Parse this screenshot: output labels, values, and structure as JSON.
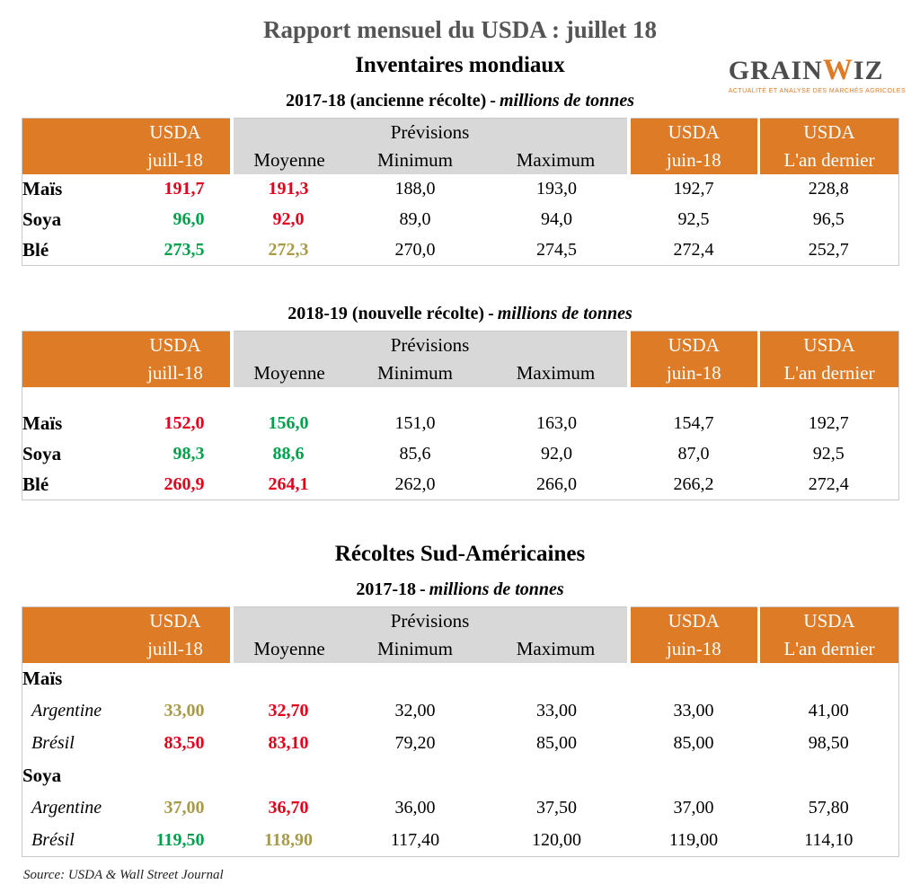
{
  "page": {
    "title": "Rapport mensuel du USDA : juillet 18",
    "source": "Source: USDA & Wall Street Journal"
  },
  "logo": {
    "grain": "GRAIN",
    "w": "W",
    "iz": "IZ",
    "tagline": "ACTUALITÉ ET ANALYSE DES MARCHÉS AGRICOLES"
  },
  "colors": {
    "orange": "#DE7B26",
    "gray_header": "#D8D8D8",
    "red": "#E4001B",
    "green": "#00A14B",
    "olive": "#A79B49",
    "black": "#000000",
    "title_gray": "#555555"
  },
  "sections": {
    "inventaires": {
      "heading": "Inventaires mondiaux"
    },
    "recoltes": {
      "heading": "Récoltes Sud-Américaines"
    }
  },
  "tables": {
    "ancienne": {
      "caption_bold": "2017-18 (ancienne récolte)",
      "caption_sep": "-",
      "caption_italic": "millions de tonnes",
      "header": {
        "usda": "USDA",
        "juill": "juill-18",
        "previsions": "Prévisions",
        "moyenne": "Moyenne",
        "minimum": "Minimum",
        "maximum": "Maximum",
        "juin": "juin-18",
        "dernier": "L'an dernier"
      },
      "spacer_after_header": false,
      "rows": [
        {
          "type": "crop",
          "label": "Maïs",
          "values": [
            {
              "text": "191,7",
              "color": "red"
            },
            {
              "text": "191,3",
              "color": "red"
            },
            {
              "text": "188,0",
              "color": "black"
            },
            {
              "text": "193,0",
              "color": "black"
            },
            {
              "text": "192,7",
              "color": "black"
            },
            {
              "text": "228,8",
              "color": "black"
            }
          ]
        },
        {
          "type": "crop",
          "label": "Soya",
          "values": [
            {
              "text": "96,0",
              "color": "green"
            },
            {
              "text": "92,0",
              "color": "red"
            },
            {
              "text": "89,0",
              "color": "black"
            },
            {
              "text": "94,0",
              "color": "black"
            },
            {
              "text": "92,5",
              "color": "black"
            },
            {
              "text": "96,5",
              "color": "black"
            }
          ]
        },
        {
          "type": "crop",
          "label": "Blé",
          "values": [
            {
              "text": "273,5",
              "color": "green"
            },
            {
              "text": "272,3",
              "color": "olive"
            },
            {
              "text": "270,0",
              "color": "black"
            },
            {
              "text": "274,5",
              "color": "black"
            },
            {
              "text": "272,4",
              "color": "black"
            },
            {
              "text": "252,7",
              "color": "black"
            }
          ]
        }
      ]
    },
    "nouvelle": {
      "caption_bold": "2018-19 (nouvelle récolte)",
      "caption_sep": "-",
      "caption_italic": "millions de tonnes",
      "header": {
        "usda": "USDA",
        "juill": "juill-18",
        "previsions": "Prévisions",
        "moyenne": "Moyenne",
        "minimum": "Minimum",
        "maximum": "Maximum",
        "juin": "juin-18",
        "dernier": "L'an dernier"
      },
      "spacer_after_header": true,
      "rows": [
        {
          "type": "crop",
          "label": "Maïs",
          "values": [
            {
              "text": "152,0",
              "color": "red"
            },
            {
              "text": "156,0",
              "color": "green"
            },
            {
              "text": "151,0",
              "color": "black"
            },
            {
              "text": "163,0",
              "color": "black"
            },
            {
              "text": "154,7",
              "color": "black"
            },
            {
              "text": "192,7",
              "color": "black"
            }
          ]
        },
        {
          "type": "crop",
          "label": "Soya",
          "values": [
            {
              "text": "98,3",
              "color": "green"
            },
            {
              "text": "88,6",
              "color": "green"
            },
            {
              "text": "85,6",
              "color": "black"
            },
            {
              "text": "92,0",
              "color": "black"
            },
            {
              "text": "87,0",
              "color": "black"
            },
            {
              "text": "92,5",
              "color": "black"
            }
          ]
        },
        {
          "type": "crop",
          "label": "Blé",
          "values": [
            {
              "text": "260,9",
              "color": "red"
            },
            {
              "text": "264,1",
              "color": "red"
            },
            {
              "text": "262,0",
              "color": "black"
            },
            {
              "text": "266,0",
              "color": "black"
            },
            {
              "text": "266,2",
              "color": "black"
            },
            {
              "text": "272,4",
              "color": "black"
            }
          ]
        }
      ]
    },
    "sud": {
      "caption_bold": "2017-18",
      "caption_sep": "-",
      "caption_italic": "millions de tonnes",
      "header": {
        "usda": "USDA",
        "juill": "juill-18",
        "previsions": "Prévisions",
        "moyenne": "Moyenne",
        "minimum": "Minimum",
        "maximum": "Maximum",
        "juin": "juin-18",
        "dernier": "L'an dernier"
      },
      "spacer_after_header": false,
      "rows": [
        {
          "type": "group",
          "label": "Maïs",
          "values": []
        },
        {
          "type": "country",
          "label": "Argentine",
          "values": [
            {
              "text": "33,00",
              "color": "olive"
            },
            {
              "text": "32,70",
              "color": "red"
            },
            {
              "text": "32,00",
              "color": "black"
            },
            {
              "text": "33,00",
              "color": "black"
            },
            {
              "text": "33,00",
              "color": "black"
            },
            {
              "text": "41,00",
              "color": "black"
            }
          ]
        },
        {
          "type": "country",
          "label": "Brésil",
          "values": [
            {
              "text": "83,50",
              "color": "red"
            },
            {
              "text": "83,10",
              "color": "red"
            },
            {
              "text": "79,20",
              "color": "black"
            },
            {
              "text": "85,00",
              "color": "black"
            },
            {
              "text": "85,00",
              "color": "black"
            },
            {
              "text": "98,50",
              "color": "black"
            }
          ]
        },
        {
          "type": "group",
          "label": "Soya",
          "values": []
        },
        {
          "type": "country",
          "label": "Argentine",
          "values": [
            {
              "text": "37,00",
              "color": "olive"
            },
            {
              "text": "36,70",
              "color": "red"
            },
            {
              "text": "36,00",
              "color": "black"
            },
            {
              "text": "37,50",
              "color": "black"
            },
            {
              "text": "37,00",
              "color": "black"
            },
            {
              "text": "57,80",
              "color": "black"
            }
          ]
        },
        {
          "type": "country",
          "label": "Brésil",
          "values": [
            {
              "text": "119,50",
              "color": "green"
            },
            {
              "text": "118,90",
              "color": "olive"
            },
            {
              "text": "117,40",
              "color": "black"
            },
            {
              "text": "120,00",
              "color": "black"
            },
            {
              "text": "119,00",
              "color": "black"
            },
            {
              "text": "114,10",
              "color": "black"
            }
          ]
        }
      ]
    }
  }
}
